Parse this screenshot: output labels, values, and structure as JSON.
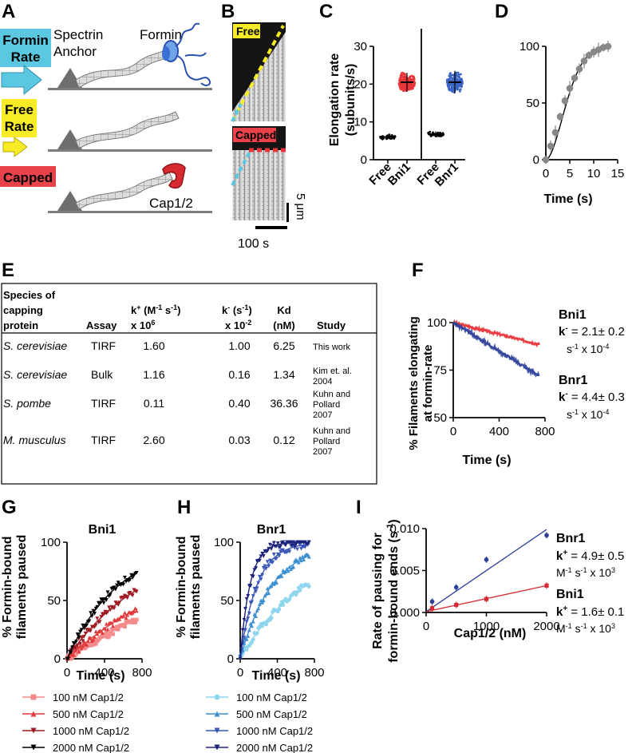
{
  "panels": {
    "a": "A",
    "b": "B",
    "c": "C",
    "d": "D",
    "e": "E",
    "f": "F",
    "g": "G",
    "h": "H",
    "i": "I"
  },
  "panel_a": {
    "formin_rate_l1": "Formin",
    "formin_rate_l2": "Rate",
    "spectrin_l1": "Spectrin",
    "spectrin_l2": "Anchor",
    "formin": "Formin",
    "free_rate_l1": "Free",
    "free_rate_l2": "Rate",
    "capped": "Capped",
    "cap": "Cap1/2",
    "colors": {
      "formin_rate_bg": "#5bc8e2",
      "free_rate_bg": "#f7ec25",
      "capped_bg": "#e8434a",
      "formin": "#3b6fd4",
      "cap": "#d62a30"
    }
  },
  "panel_b": {
    "free": "Free",
    "capped": "Capped",
    "scale_um": "5 μm",
    "scale_s": "100 s"
  },
  "chart_data": [
    {
      "panel": "C",
      "type": "scatter",
      "ylabel_l1": "Elongation rate",
      "ylabel_l2": "(subunits/s)",
      "yticks": [
        "0",
        "10",
        "20",
        "30"
      ],
      "ylim": [
        0,
        30
      ],
      "groups": [
        {
          "label": "Free",
          "mean": 6,
          "sd": 0.6,
          "color": "#000000",
          "facet": 1
        },
        {
          "label": "Bni1",
          "mean": 20.5,
          "sd": 2.5,
          "color": "#e8343a",
          "facet": 1
        },
        {
          "label": "Free",
          "mean": 6.8,
          "sd": 0.7,
          "color": "#000000",
          "facet": 2
        },
        {
          "label": "Bnr1",
          "mean": 20.5,
          "sd": 3.0,
          "color": "#3a64c4",
          "facet": 2
        }
      ]
    },
    {
      "panel": "D",
      "type": "line",
      "xlabel": "Time (s)",
      "xticks": [
        "0",
        "5",
        "10",
        "15"
      ],
      "yticks": [
        "0",
        "50",
        "100"
      ],
      "xlim": [
        0,
        15
      ],
      "ylim": [
        0,
        100
      ],
      "x": [
        0,
        1,
        2,
        3,
        4,
        5,
        6,
        7,
        8,
        9,
        10,
        11,
        12,
        13
      ],
      "y": [
        0,
        12,
        24,
        38,
        52,
        63,
        72,
        80,
        87,
        92,
        95,
        97,
        99,
        100
      ],
      "color": "#888888"
    },
    {
      "panel": "F",
      "type": "line",
      "ylabel_l1": "% Filaments elongating",
      "ylabel_l2": "at formin-rate",
      "xlabel": "Time (s)",
      "xticks": [
        "0",
        "400",
        "800"
      ],
      "yticks": [
        "50",
        "75",
        "100"
      ],
      "xlim": [
        0,
        800
      ],
      "ylim": [
        50,
        100
      ],
      "series": [
        {
          "name": "Bni1",
          "x": [
            0,
            750
          ],
          "y": [
            100,
            88.5
          ],
          "color": "#e8343a"
        },
        {
          "name": "Bnr1",
          "x": [
            0,
            750
          ],
          "y": [
            100,
            72
          ],
          "color": "#2c3f9a"
        }
      ],
      "annot": [
        {
          "name": "Bni1",
          "k_label": "k",
          "sup": "-",
          "value": " = 2.1",
          "pm": "± 0.2",
          "unit": "s",
          "unit_sup": "-1",
          "unit_tail": " x 10",
          "exp": "-4"
        },
        {
          "name": "Bnr1",
          "k_label": "k",
          "sup": "-",
          "value": " = 4.4",
          "pm": "± 0.3",
          "unit": "s",
          "unit_sup": "-1",
          "unit_tail": " x 10",
          "exp": "-4"
        }
      ]
    },
    {
      "panel": "G",
      "type": "line",
      "title": "Bni1",
      "ylabel_l1": "% Formin-bound",
      "ylabel_l2": "filaments paused",
      "xlabel": "Time (s)",
      "xticks": [
        "0",
        "400",
        "800"
      ],
      "yticks": [
        "0",
        "50",
        "100"
      ],
      "xlim": [
        0,
        800
      ],
      "ylim": [
        0,
        100
      ],
      "series": [
        {
          "name": "100 nM Cap1/2",
          "k": 0.00055,
          "color": "#f48a8a",
          "marker": "square"
        },
        {
          "name": "500 nM Cap1/2",
          "k": 0.00075,
          "color": "#e03a3a",
          "marker": "triangle"
        },
        {
          "name": "1000 nM Cap1/2",
          "k": 0.0012,
          "color": "#9e1d24",
          "marker": "triangle-down"
        },
        {
          "name": "2000 nM Cap1/2",
          "k": 0.0018,
          "color": "#000000",
          "marker": "triangle-down"
        }
      ]
    },
    {
      "panel": "H",
      "type": "line",
      "title": "Bnr1",
      "ylabel_l1": "% Formin-bound",
      "ylabel_l2": "filaments paused",
      "xlabel": "Time (s)",
      "xticks": [
        "0",
        "400",
        "800"
      ],
      "yticks": [
        "0",
        "50",
        "100"
      ],
      "xlim": [
        0,
        800
      ],
      "ylim": [
        0,
        100
      ],
      "series": [
        {
          "name": "100 nM Cap1/2",
          "k": 0.0014,
          "color": "#8fd6ee",
          "marker": "circle"
        },
        {
          "name": "500 nM Cap1/2",
          "k": 0.0029,
          "color": "#3c8fd0",
          "marker": "triangle"
        },
        {
          "name": "1000 nM Cap1/2",
          "k": 0.0055,
          "color": "#3a56b8",
          "marker": "triangle-down"
        },
        {
          "name": "2000 nM Cap1/2",
          "k": 0.0095,
          "color": "#1d237a",
          "marker": "triangle-down"
        }
      ]
    },
    {
      "panel": "I",
      "type": "scatter",
      "ylabel_l1": "Rate of pausing for",
      "ylabel_l2": "formin-bound ends (s",
      "ylabel_sup": "-1",
      "ylabel_tail": ")",
      "xlabel": "Cap1/2 (nM)",
      "xticks": [
        "0",
        "1000",
        "2000"
      ],
      "yticks": [
        "0.000",
        "0.005",
        "0.010"
      ],
      "xlim": [
        0,
        2000
      ],
      "ylim": [
        0,
        0.01
      ],
      "series": [
        {
          "name": "Bnr1",
          "x": [
            100,
            500,
            1000,
            2000
          ],
          "y": [
            0.0013,
            0.003,
            0.0063,
            0.0092
          ],
          "fit": [
            [
              0,
              0.0001
            ],
            [
              2000,
              0.0099
            ]
          ],
          "color": "#2c3f9a"
        },
        {
          "name": "Bni1",
          "x": [
            100,
            500,
            1000,
            2000
          ],
          "y": [
            0.0005,
            0.0009,
            0.0016,
            0.0032
          ],
          "fit": [
            [
              0,
              0.0001
            ],
            [
              2000,
              0.0032
            ]
          ],
          "color": "#d62a30"
        }
      ],
      "annot": [
        {
          "name": "Bnr1",
          "k_label": "k",
          "sup": "+",
          "value": " = 4.9",
          "pm": "± 0.5",
          "unit": "M",
          "unit_sup": "-1",
          "unit_mid": " s",
          "unit_sup2": "-1",
          "unit_tail": " x 10",
          "exp": "3"
        },
        {
          "name": "Bni1",
          "k_label": "k",
          "sup": "+",
          "value": " = 1.6",
          "pm": "± 0.1",
          "unit": "M",
          "unit_sup": "-1",
          "unit_mid": " s",
          "unit_sup2": "-1",
          "unit_tail": " x 10",
          "exp": "3"
        }
      ]
    }
  ],
  "table_e": {
    "headers": {
      "species_l1": "Species of",
      "species_l2": "capping",
      "species_l3": "protein",
      "assay": "Assay",
      "kon_l1": "k",
      "kon_sup": "+",
      "kon_unit": " (M",
      "kon_unit_sup": "-1",
      "kon_unit_mid": " s",
      "kon_unit_sup2": "-1",
      "kon_unit_tail": ")",
      "kon_l2": "x 10",
      "kon_exp": "6",
      "koff_l1": "k",
      "koff_sup": "-",
      "koff_unit": " (s",
      "koff_unit_sup": "-1",
      "koff_unit_tail": ")",
      "koff_l2": "x 10",
      "koff_exp": "-2",
      "kd_l1": "Kd",
      "kd_l2": "(nM)",
      "study": "Study"
    },
    "rows": [
      {
        "species": "S. cerevisiae",
        "assay": "TIRF",
        "kon": "1.60",
        "koff": "1.00",
        "kd": "6.25",
        "study_l1": "This work",
        "study_l2": ""
      },
      {
        "species": "S. cerevisiae",
        "assay": "Bulk",
        "kon": "1.16",
        "koff": "0.16",
        "kd": "1.34",
        "study_l1": "Kim et. al.",
        "study_l2": "2004"
      },
      {
        "species": "S. pombe",
        "assay": "TIRF",
        "kon": "0.11",
        "koff": "0.40",
        "kd": "36.36",
        "study_l1": "Kuhn and",
        "study_l2": "Pollard",
        "study_l3": "2007"
      },
      {
        "species": "M. musculus",
        "assay": "TIRF",
        "kon": "2.60",
        "koff": "0.03",
        "kd": "0.12",
        "study_l1": "Kuhn and",
        "study_l2": "Pollard",
        "study_l3": "2007"
      }
    ]
  }
}
